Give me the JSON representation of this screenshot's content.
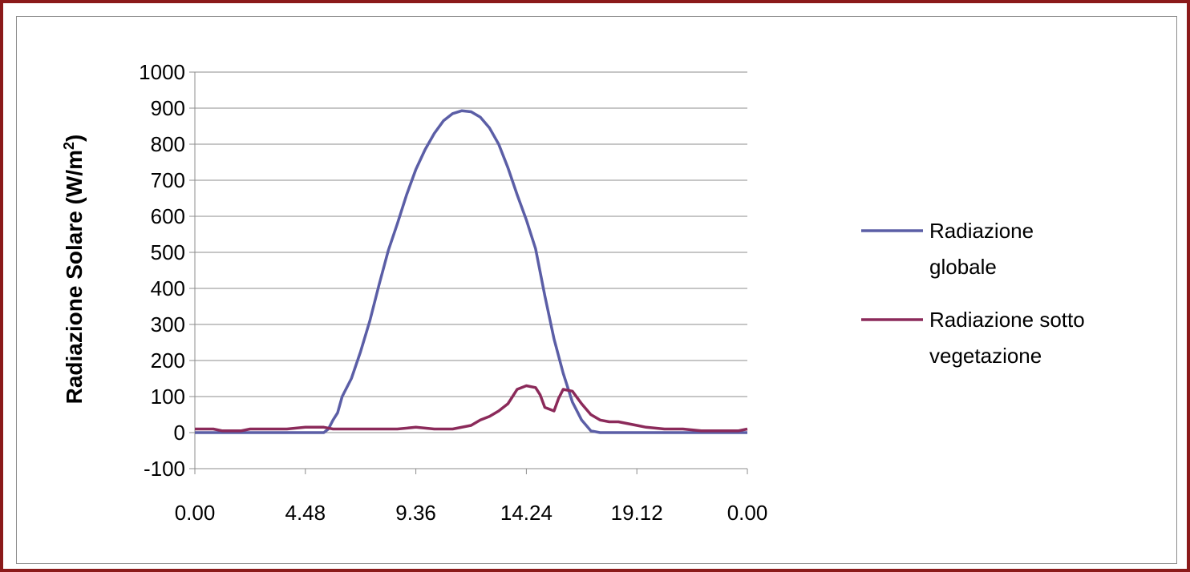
{
  "chart_data": {
    "type": "line",
    "ylabel": "Radiazione Solare (W/m",
    "ylabel_sup": "2",
    "ylabel_end": ")",
    "xlabel": "",
    "title": "",
    "ylim": [
      -100,
      1000
    ],
    "y_ticks": [
      "1000",
      "900",
      "800",
      "700",
      "600",
      "500",
      "400",
      "300",
      "200",
      "100",
      "0",
      "-100"
    ],
    "x_tick_labels": [
      "0.00",
      "4.48",
      "9.36",
      "14.24",
      "19.12",
      "0.00"
    ],
    "x_range_hours": [
      0,
      24
    ],
    "grid": "horizontal",
    "legend_position": "right",
    "series": [
      {
        "name": "Radiazione globale",
        "name_line1": "Radiazione",
        "name_line2": "globale",
        "color": "#5b5ea6",
        "x": [
          "0.00",
          "5.36",
          "5.48",
          "6.00",
          "6.12",
          "6.24",
          "6.48",
          "7.12",
          "7.36",
          "8.00",
          "8.24",
          "8.48",
          "9.12",
          "9.36",
          "10.00",
          "10.24",
          "10.48",
          "11.12",
          "11.36",
          "12.00",
          "12.24",
          "12.48",
          "13.12",
          "13.36",
          "14.00",
          "14.24",
          "14.48",
          "15.12",
          "15.36",
          "16.00",
          "16.24",
          "16.48",
          "17.12",
          "17.36",
          "18.00",
          "18.24",
          "18.48",
          "19.12",
          "19.36",
          "20.00",
          "20.24",
          "24.00"
        ],
        "values": [
          0,
          0,
          10,
          35,
          55,
          100,
          150,
          225,
          310,
          410,
          505,
          580,
          660,
          730,
          785,
          830,
          865,
          885,
          893,
          890,
          875,
          845,
          800,
          735,
          660,
          590,
          510,
          380,
          260,
          165,
          85,
          35,
          5,
          0,
          0,
          0,
          0,
          0,
          0,
          0,
          0,
          0
        ]
      },
      {
        "name": "Radiazione sotto vegetazione",
        "name_line1": "Radiazione sotto",
        "name_line2": "vegetazione",
        "color": "#8b2a5a",
        "x": [
          "0.00",
          "0.48",
          "1.12",
          "2.00",
          "2.24",
          "4.00",
          "4.48",
          "5.36",
          "6.00",
          "8.48",
          "9.36",
          "10.24",
          "11.12",
          "12.00",
          "12.24",
          "12.48",
          "13.12",
          "13.36",
          "13.48",
          "14.00",
          "14.24",
          "14.48",
          "15.00",
          "15.12",
          "15.36",
          "15.48",
          "16.00",
          "16.24",
          "16.48",
          "17.12",
          "17.36",
          "18.00",
          "18.24",
          "19.12",
          "19.36",
          "20.24",
          "21.12",
          "22.00",
          "22.24",
          "23.36",
          "24.00"
        ],
        "values": [
          10,
          10,
          5,
          5,
          10,
          10,
          15,
          15,
          10,
          10,
          15,
          10,
          10,
          20,
          35,
          45,
          60,
          80,
          100,
          120,
          130,
          125,
          105,
          70,
          60,
          95,
          120,
          115,
          80,
          50,
          35,
          30,
          30,
          20,
          15,
          10,
          10,
          5,
          5,
          5,
          10
        ]
      }
    ]
  }
}
